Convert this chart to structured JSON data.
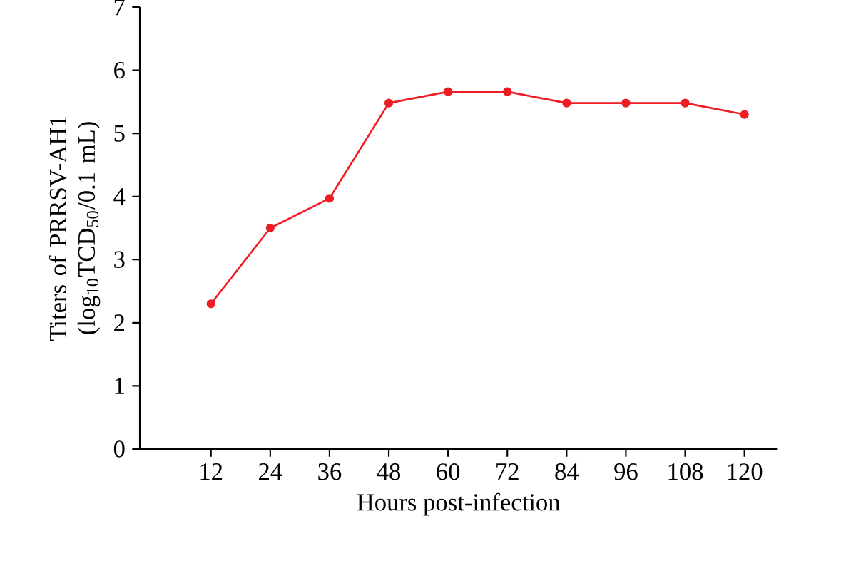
{
  "chart_data": {
    "type": "line",
    "xlabel": "Hours post-infection",
    "ylabel": "Titers of PRRSV-AH1 (log$_{10}$TCD$_{50}$/0.1 mL)",
    "categories": [
      "12",
      "24",
      "36",
      "48",
      "60",
      "72",
      "84",
      "96",
      "108",
      "120"
    ],
    "series": [
      {
        "color": "#ee1c24",
        "values": [
          2.3,
          3.5,
          3.97,
          5.48,
          5.66,
          5.66,
          5.48,
          5.48,
          5.48,
          5.3
        ]
      }
    ],
    "ylim": [
      0,
      7
    ],
    "yticks": [
      0,
      1,
      2,
      3,
      4,
      5,
      6,
      7
    ],
    "marker": "circle",
    "line_style": "solid"
  }
}
